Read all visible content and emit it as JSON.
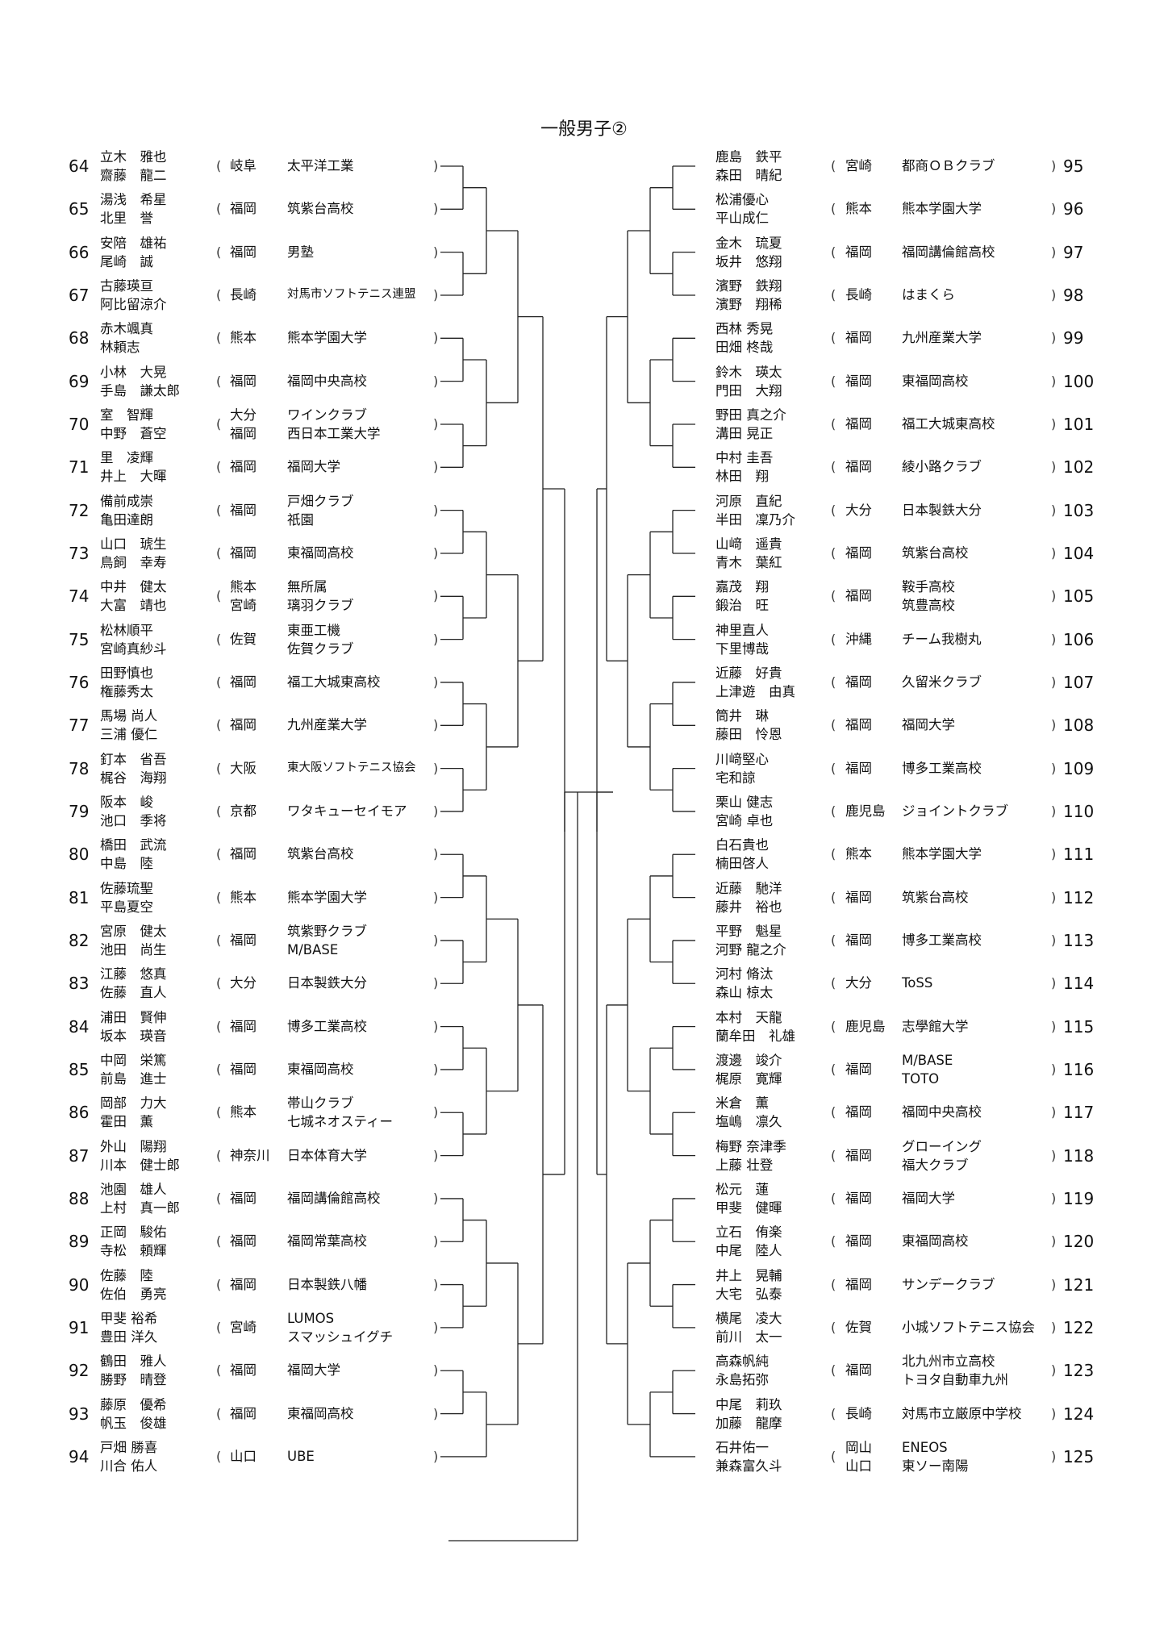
{
  "title": "一般男子②",
  "left_entries": [
    {
      "no": "64",
      "p1": "立木　雅也",
      "p2": "齋藤　龍二",
      "pref": [
        "岐阜"
      ],
      "team": [
        "太平洋工業"
      ]
    },
    {
      "no": "65",
      "p1": "湯浅　希星",
      "p2": "北里　誉",
      "pref": [
        "福岡"
      ],
      "team": [
        "筑紫台高校"
      ]
    },
    {
      "no": "66",
      "p1": "安陪　雄祐",
      "p2": "尾崎　誠",
      "pref": [
        "福岡"
      ],
      "team": [
        "男塾"
      ]
    },
    {
      "no": "67",
      "p1": "古藤瑛亘",
      "p2": "阿比留涼介",
      "pref": [
        "長崎"
      ],
      "team": [
        "対馬市ソフトテニス連盟"
      ],
      "small": true
    },
    {
      "no": "68",
      "p1": "赤木颯真",
      "p2": "林頼志",
      "pref": [
        "熊本"
      ],
      "team": [
        "熊本学園大学"
      ]
    },
    {
      "no": "69",
      "p1": "小林　大晃",
      "p2": "手島　謙太郎",
      "pref": [
        "福岡"
      ],
      "team": [
        "福岡中央高校"
      ]
    },
    {
      "no": "70",
      "p1": "室　智輝",
      "p2": "中野　蒼空",
      "pref": [
        "大分",
        "福岡"
      ],
      "team": [
        "ワインクラブ",
        "西日本工業大学"
      ]
    },
    {
      "no": "71",
      "p1": "里　凌輝",
      "p2": "井上　大暉",
      "pref": [
        "福岡"
      ],
      "team": [
        "福岡大学"
      ]
    },
    {
      "no": "72",
      "p1": "備前成崇",
      "p2": "亀田達朗",
      "pref": [
        "福岡"
      ],
      "team": [
        "戸畑クラブ",
        "祇園"
      ]
    },
    {
      "no": "73",
      "p1": "山口　琥生",
      "p2": "鳥飼　幸寿",
      "pref": [
        "福岡"
      ],
      "team": [
        "東福岡高校"
      ]
    },
    {
      "no": "74",
      "p1": "中井　健太",
      "p2": "大富　靖也",
      "pref": [
        "熊本",
        "宮崎"
      ],
      "team": [
        "無所属",
        "璃羽クラブ"
      ]
    },
    {
      "no": "75",
      "p1": "松林順平",
      "p2": "宮崎真紗斗",
      "pref": [
        "佐賀"
      ],
      "team": [
        "東亜工機",
        "佐賀クラブ"
      ]
    },
    {
      "no": "76",
      "p1": "田野慎也",
      "p2": "権藤秀太",
      "pref": [
        "福岡"
      ],
      "team": [
        "福工大城東高校"
      ]
    },
    {
      "no": "77",
      "p1": "馬場 尚人",
      "p2": "三浦 優仁",
      "pref": [
        "福岡"
      ],
      "team": [
        "九州産業大学"
      ]
    },
    {
      "no": "78",
      "p1": "釘本　省吾",
      "p2": "梶谷　海翔",
      "pref": [
        "大阪"
      ],
      "team": [
        "東大阪ソフトテニス協会"
      ],
      "small": true
    },
    {
      "no": "79",
      "p1": "阪本　峻",
      "p2": "池口　季将",
      "pref": [
        "京都"
      ],
      "team": [
        "ワタキューセイモア"
      ]
    },
    {
      "no": "80",
      "p1": "橋田　武流",
      "p2": "中島　陸",
      "pref": [
        "福岡"
      ],
      "team": [
        "筑紫台高校"
      ]
    },
    {
      "no": "81",
      "p1": "佐藤琉聖",
      "p2": "平島夏空",
      "pref": [
        "熊本"
      ],
      "team": [
        "熊本学園大学"
      ]
    },
    {
      "no": "82",
      "p1": "宮原　健太",
      "p2": "池田　尚生",
      "pref": [
        "福岡"
      ],
      "team": [
        "筑紫野クラブ",
        "M/BASE"
      ]
    },
    {
      "no": "83",
      "p1": "江藤　悠真",
      "p2": "佐藤　直人",
      "pref": [
        "大分"
      ],
      "team": [
        "日本製鉄大分"
      ]
    },
    {
      "no": "84",
      "p1": "浦田　賢伸",
      "p2": "坂本　瑛音",
      "pref": [
        "福岡"
      ],
      "team": [
        "博多工業高校"
      ]
    },
    {
      "no": "85",
      "p1": "中岡　栄篤",
      "p2": "前島　進士",
      "pref": [
        "福岡"
      ],
      "team": [
        "東福岡高校"
      ]
    },
    {
      "no": "86",
      "p1": "岡部　力大",
      "p2": "霍田　薫",
      "pref": [
        "熊本"
      ],
      "team": [
        "帯山クラブ",
        "七城ネオスティー"
      ]
    },
    {
      "no": "87",
      "p1": "外山　陽翔",
      "p2": "川本　健士郎",
      "pref": [
        "神奈川"
      ],
      "team": [
        "日本体育大学"
      ]
    },
    {
      "no": "88",
      "p1": "池園　雄人",
      "p2": "上村　真一郎",
      "pref": [
        "福岡"
      ],
      "team": [
        "福岡講倫館高校"
      ]
    },
    {
      "no": "89",
      "p1": "正岡　駿佑",
      "p2": "寺松　頼輝",
      "pref": [
        "福岡"
      ],
      "team": [
        "福岡常葉高校"
      ]
    },
    {
      "no": "90",
      "p1": "佐藤　陸",
      "p2": "佐伯　勇亮",
      "pref": [
        "福岡"
      ],
      "team": [
        "日本製鉄八幡"
      ]
    },
    {
      "no": "91",
      "p1": "甲斐 裕希",
      "p2": "豊田 洋久",
      "pref": [
        "宮崎"
      ],
      "team": [
        "LUMOS",
        "スマッシュイグチ"
      ]
    },
    {
      "no": "92",
      "p1": "鶴田　雅人",
      "p2": "勝野　晴登",
      "pref": [
        "福岡"
      ],
      "team": [
        "福岡大学"
      ]
    },
    {
      "no": "93",
      "p1": "藤原　優希",
      "p2": "帆玉　俊雄",
      "pref": [
        "福岡"
      ],
      "team": [
        "東福岡高校"
      ]
    },
    {
      "no": "94",
      "p1": "戸畑 勝喜",
      "p2": "川合 佑人",
      "pref": [
        "山口"
      ],
      "team": [
        "UBE"
      ]
    }
  ],
  "right_entries": [
    {
      "no": "95",
      "p1": "鹿島　鉄平",
      "p2": "森田　晴紀",
      "pref": [
        "宮崎"
      ],
      "team": [
        "都商ＯＢクラブ"
      ]
    },
    {
      "no": "96",
      "p1": "松浦優心",
      "p2": "平山成仁",
      "pref": [
        "熊本"
      ],
      "team": [
        "熊本学園大学"
      ]
    },
    {
      "no": "97",
      "p1": "金木　琉夏",
      "p2": "坂井　悠翔",
      "pref": [
        "福岡"
      ],
      "team": [
        "福岡講倫館高校"
      ]
    },
    {
      "no": "98",
      "p1": "濱野　鉄翔",
      "p2": "濱野　翔稀",
      "pref": [
        "長崎"
      ],
      "team": [
        "はまくら"
      ]
    },
    {
      "no": "99",
      "p1": "西林 秀晃",
      "p2": "田畑 柊哉",
      "pref": [
        "福岡"
      ],
      "team": [
        "九州産業大学"
      ]
    },
    {
      "no": "100",
      "p1": "鈴木　瑛太",
      "p2": "門田　大翔",
      "pref": [
        "福岡"
      ],
      "team": [
        "東福岡高校"
      ]
    },
    {
      "no": "101",
      "p1": "野田 真之介",
      "p2": "溝田 晃正",
      "pref": [
        "福岡"
      ],
      "team": [
        "福工大城東高校"
      ]
    },
    {
      "no": "102",
      "p1": "中村 圭吾",
      "p2": "林田　翔",
      "pref": [
        "福岡"
      ],
      "team": [
        "綾小路クラブ"
      ]
    },
    {
      "no": "103",
      "p1": "河原　直紀",
      "p2": "半田　凜乃介",
      "pref": [
        "大分"
      ],
      "team": [
        "日本製鉄大分"
      ]
    },
    {
      "no": "104",
      "p1": "山﨑　遥貴",
      "p2": "青木　葉紅",
      "pref": [
        "福岡"
      ],
      "team": [
        "筑紫台高校"
      ]
    },
    {
      "no": "105",
      "p1": "嘉茂　翔",
      "p2": "鍛治　旺",
      "pref": [
        "福岡"
      ],
      "team": [
        "鞍手高校",
        "筑豊高校"
      ]
    },
    {
      "no": "106",
      "p1": "神里直人",
      "p2": "下里博哉",
      "pref": [
        "沖縄"
      ],
      "team": [
        "チーム我樹丸"
      ]
    },
    {
      "no": "107",
      "p1": "近藤　好貴",
      "p2": "上津遊　由真",
      "pref": [
        "福岡"
      ],
      "team": [
        "久留米クラブ"
      ]
    },
    {
      "no": "108",
      "p1": "筒井　琳",
      "p2": "藤田　怜恩",
      "pref": [
        "福岡"
      ],
      "team": [
        "福岡大学"
      ]
    },
    {
      "no": "109",
      "p1": "川﨑堅心",
      "p2": "宅和諒",
      "pref": [
        "福岡"
      ],
      "team": [
        "博多工業高校"
      ]
    },
    {
      "no": "110",
      "p1": "栗山 健志",
      "p2": "宮崎 卓也",
      "pref": [
        "鹿児島"
      ],
      "team": [
        "ジョイントクラブ"
      ]
    },
    {
      "no": "111",
      "p1": "白石貴也",
      "p2": "楠田啓人",
      "pref": [
        "熊本"
      ],
      "team": [
        "熊本学園大学"
      ]
    },
    {
      "no": "112",
      "p1": "近藤　馳洋",
      "p2": "藤井　裕也",
      "pref": [
        "福岡"
      ],
      "team": [
        "筑紫台高校"
      ]
    },
    {
      "no": "113",
      "p1": "平野　魁星",
      "p2": "河野 龍之介",
      "pref": [
        "福岡"
      ],
      "team": [
        "博多工業高校"
      ]
    },
    {
      "no": "114",
      "p1": "河村 脩汰",
      "p2": "森山 椋太",
      "pref": [
        "大分"
      ],
      "team": [
        "ToSS"
      ]
    },
    {
      "no": "115",
      "p1": "本村　天龍",
      "p2": "蘭牟田　礼雄",
      "pref": [
        "鹿児島"
      ],
      "team": [
        "志學館大学"
      ]
    },
    {
      "no": "116",
      "p1": "渡邊　竣介",
      "p2": "梶原　寛輝",
      "pref": [
        "福岡"
      ],
      "team": [
        "M/BASE",
        "TOTO"
      ]
    },
    {
      "no": "117",
      "p1": "米倉　薫",
      "p2": "塩嶋　凛久",
      "pref": [
        "福岡"
      ],
      "team": [
        "福岡中央高校"
      ]
    },
    {
      "no": "118",
      "p1": "梅野 奈津季",
      "p2": "上藤 壮登",
      "pref": [
        "福岡"
      ],
      "team": [
        "グローイング",
        "福大クラブ"
      ]
    },
    {
      "no": "119",
      "p1": "松元　蓮",
      "p2": "甲斐　健暉",
      "pref": [
        "福岡"
      ],
      "team": [
        "福岡大学"
      ]
    },
    {
      "no": "120",
      "p1": "立石　侑楽",
      "p2": "中尾　陸人",
      "pref": [
        "福岡"
      ],
      "team": [
        "東福岡高校"
      ]
    },
    {
      "no": "121",
      "p1": "井上　晃輔",
      "p2": "大宅　弘泰",
      "pref": [
        "福岡"
      ],
      "team": [
        "サンデークラブ"
      ]
    },
    {
      "no": "122",
      "p1": "横尾　凌大",
      "p2": "前川　太一",
      "pref": [
        "佐賀"
      ],
      "team": [
        "小城ソフトテニス協会"
      ]
    },
    {
      "no": "123",
      "p1": "高森帆純",
      "p2": "永島拓弥",
      "pref": [
        "福岡"
      ],
      "team": [
        "北九州市立高校",
        "トヨタ自動車九州"
      ]
    },
    {
      "no": "124",
      "p1": "中尾　莉玖",
      "p2": "加藤　龍摩",
      "pref": [
        "長崎"
      ],
      "team": [
        "対馬市立厳原中学校"
      ]
    },
    {
      "no": "125",
      "p1": "石井佑一",
      "p2": "兼森富久斗",
      "pref": [
        "岡山",
        "山口"
      ],
      "team": [
        "ENEOS",
        "東ソー南陽"
      ]
    }
  ]
}
